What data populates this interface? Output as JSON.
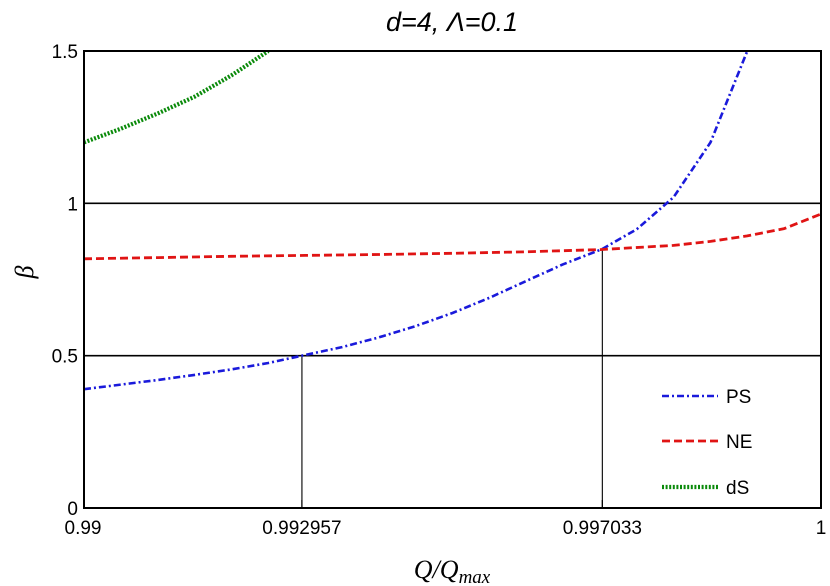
{
  "chart_data": {
    "type": "line",
    "title": "d=4, Λ=0.1",
    "xlabel_main": "Q/Q",
    "xlabel_sub": "max",
    "ylabel": "β",
    "xlim": [
      0.99,
      1.0
    ],
    "ylim": [
      0,
      1.5
    ],
    "x_ticks": [
      {
        "value": 0.99,
        "label": "0.99"
      },
      {
        "value": 0.992957,
        "label": "0.992957"
      },
      {
        "value": 0.997033,
        "label": "0.997033"
      },
      {
        "value": 1.0,
        "label": "1"
      }
    ],
    "y_ticks": [
      {
        "value": 0,
        "label": "0"
      },
      {
        "value": 0.5,
        "label": "0.5"
      },
      {
        "value": 1.0,
        "label": "1"
      },
      {
        "value": 1.5,
        "label": "1.5"
      }
    ],
    "horizontal_gridlines": [
      0.5,
      1.0
    ],
    "drop_lines": [
      {
        "x": 0.992957,
        "y": 0.5
      },
      {
        "x": 0.997033,
        "y": 0.85
      }
    ],
    "legend_position": "bottom-right",
    "series": [
      {
        "name": "PS",
        "color": "#1a1adb",
        "dash": "dashdot",
        "x": [
          0.99,
          0.9905,
          0.991,
          0.9915,
          0.992,
          0.9925,
          0.992957,
          0.9935,
          0.994,
          0.9945,
          0.995,
          0.9955,
          0.996,
          0.9965,
          0.997033,
          0.9975,
          0.998,
          0.9985,
          0.999
        ],
        "y": [
          0.39,
          0.405,
          0.42,
          0.437,
          0.455,
          0.476,
          0.5,
          0.528,
          0.56,
          0.597,
          0.64,
          0.69,
          0.745,
          0.8,
          0.85,
          0.915,
          1.02,
          1.2,
          1.5
        ]
      },
      {
        "name": "NE",
        "color": "#e01414",
        "dash": "dashed",
        "x": [
          0.99,
          0.991,
          0.992,
          0.993,
          0.994,
          0.995,
          0.996,
          0.997,
          0.998,
          0.9985,
          0.999,
          0.9995,
          1.0
        ],
        "y": [
          0.818,
          0.822,
          0.826,
          0.829,
          0.832,
          0.836,
          0.841,
          0.848,
          0.862,
          0.875,
          0.893,
          0.917,
          0.965
        ]
      },
      {
        "name": "dS",
        "color": "#0a8a0a",
        "dash": "dotted",
        "x": [
          0.99,
          0.9905,
          0.991,
          0.9915,
          0.992,
          0.9925
        ],
        "y": [
          1.2,
          1.245,
          1.295,
          1.35,
          1.42,
          1.5
        ]
      }
    ]
  }
}
